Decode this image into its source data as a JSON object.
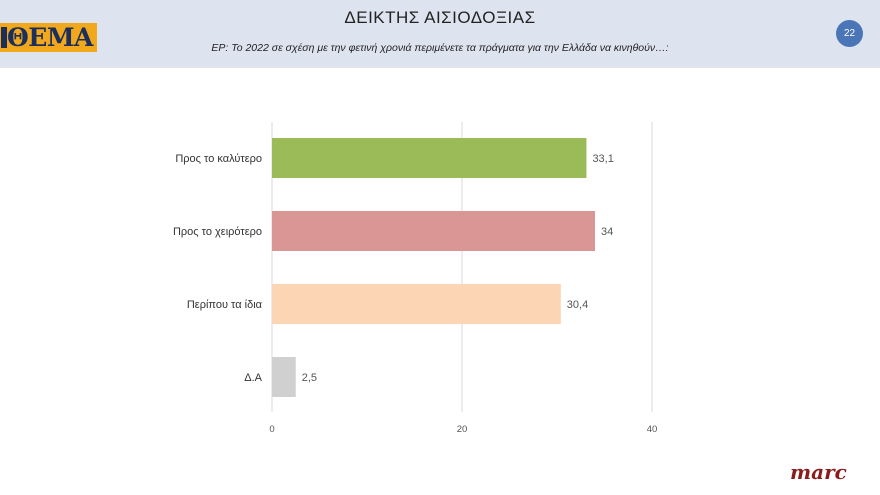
{
  "header": {
    "logo_text": "ΘΕΜΑ",
    "title": "ΔΕΙΚΤΗΣ ΑΙΣΙΟΔΟΞΙΑΣ",
    "question": "ΕΡ: Το 2022 σε σχέση με την φετινή χρονιά περιμένετε τα πράγματα για την Ελλάδα να κινηθούν…:",
    "page_number": "22"
  },
  "footer": {
    "brand": "marc"
  },
  "chart_data": {
    "type": "bar",
    "orientation": "horizontal",
    "categories": [
      "Προς το καλύτερο",
      "Προς το χειρότερο",
      "Περίπου τα ίδια",
      "Δ.Α"
    ],
    "values": [
      33.1,
      34,
      30.4,
      2.5
    ],
    "value_labels": [
      "33,1",
      "34",
      "30,4",
      "2,5"
    ],
    "colors": [
      "#9bbb59",
      "#d99694",
      "#fcd5b5",
      "#d0d0d0"
    ],
    "xlim": [
      0,
      40
    ],
    "xticks": [
      0,
      20,
      40
    ],
    "grid": true,
    "title": "",
    "xlabel": "",
    "ylabel": ""
  }
}
